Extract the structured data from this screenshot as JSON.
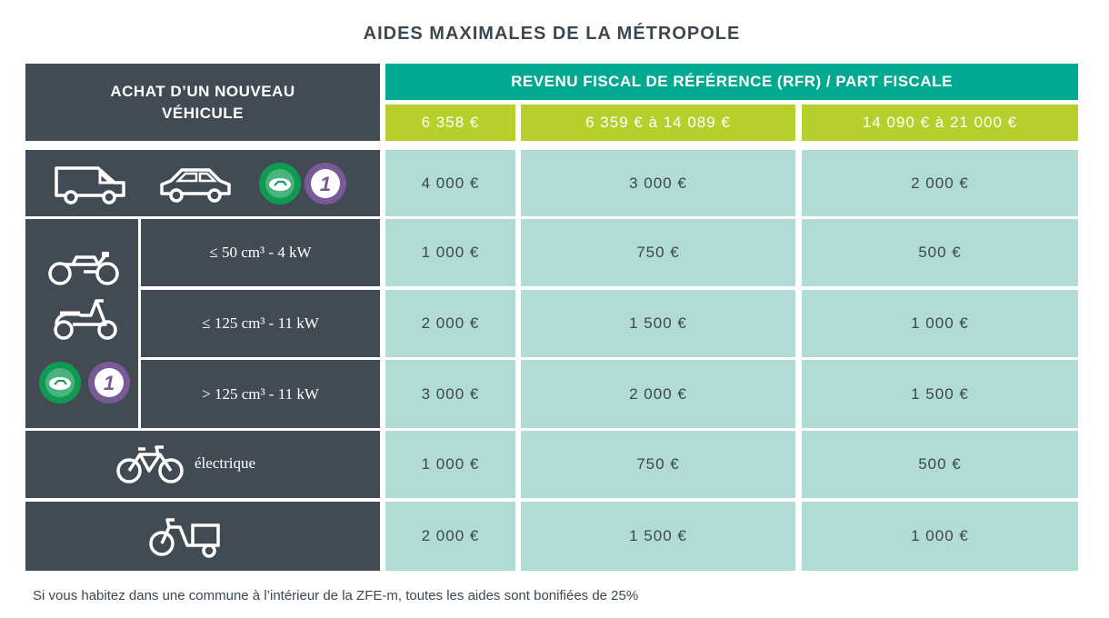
{
  "title": "AIDES MAXIMALES DE LA MÉTROPOLE",
  "header": {
    "left": "ACHAT D’UN NOUVEAU VÉHICULE",
    "rfr": "REVENU FISCAL DE RÉFÉRENCE (RFR) / PART FISCALE",
    "brackets": [
      "6 358 €",
      "6 359 € à 14 089 €",
      "14 090 € à 21 000 €"
    ]
  },
  "rows": [
    {
      "label": "",
      "values": [
        "4 000 €",
        "3 000 €",
        "2 000 €"
      ]
    },
    {
      "label": "≤ 50 cm³ - 4 kW",
      "values": [
        "1 000 €",
        "750 €",
        "500 €"
      ]
    },
    {
      "label": "≤ 125 cm³ - 11 kW",
      "values": [
        "2 000 €",
        "1 500 €",
        "1 000 €"
      ]
    },
    {
      "label": "> 125 cm³ - 11 kW",
      "values": [
        "3 000 €",
        "2 000 €",
        "1 500 €"
      ]
    },
    {
      "label": "électrique",
      "values": [
        "1 000 €",
        "750 €",
        "500 €"
      ]
    },
    {
      "label": "",
      "values": [
        "2 000 €",
        "1 500 €",
        "1 000 €"
      ]
    }
  ],
  "badges": {
    "crit_air_label": "1"
  },
  "footnote": "Si vous habitez dans une commune à l’intérieur de la ZFE-m, toutes les aides sont bonifiées de 25%",
  "colors": {
    "dark": "#424b54",
    "teal": "#00a98f",
    "lime": "#b6cf2d",
    "cell": "#b1dbd5",
    "badge_green": "#0f9a52",
    "badge_purple": "#7a5a96"
  },
  "icons": [
    "van-icon",
    "car-icon",
    "crit-air-electric-badge-icon",
    "crit-air-1-badge-icon",
    "motorcycle-icon",
    "scooter-icon",
    "bicycle-icon",
    "cargo-bike-icon"
  ]
}
